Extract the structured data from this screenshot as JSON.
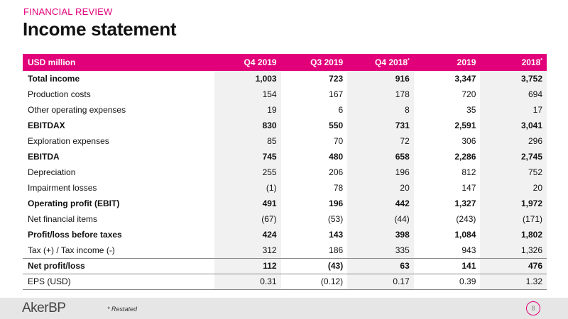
{
  "header": {
    "section": "FINANCIAL REVIEW",
    "title": "Income statement"
  },
  "table": {
    "columns": [
      "USD million",
      "Q4 2019",
      "Q3 2019",
      "Q4 2018",
      "2019",
      "2018"
    ],
    "column_marks": [
      "",
      "",
      "",
      "*",
      "",
      "*"
    ],
    "rows": [
      {
        "label": "Total income",
        "values": [
          "1,003",
          "723",
          "916",
          "3,347",
          "3,752"
        ],
        "bold": true
      },
      {
        "label": "Production costs",
        "values": [
          "154",
          "167",
          "178",
          "720",
          "694"
        ],
        "bold": false
      },
      {
        "label": "Other operating expenses",
        "values": [
          "19",
          "6",
          "8",
          "35",
          "17"
        ],
        "bold": false
      },
      {
        "label": "EBITDAX",
        "values": [
          "830",
          "550",
          "731",
          "2,591",
          "3,041"
        ],
        "bold": true
      },
      {
        "label": "Exploration expenses",
        "values": [
          "85",
          "70",
          "72",
          "306",
          "296"
        ],
        "bold": false
      },
      {
        "label": "EBITDA",
        "values": [
          "745",
          "480",
          "658",
          "2,286",
          "2,745"
        ],
        "bold": true
      },
      {
        "label": "Depreciation",
        "values": [
          "255",
          "206",
          "196",
          "812",
          "752"
        ],
        "bold": false
      },
      {
        "label": "Impairment losses",
        "values": [
          "(1)",
          "78",
          "20",
          "147",
          "20"
        ],
        "bold": false
      },
      {
        "label": "Operating profit (EBIT)",
        "values": [
          "491",
          "196",
          "442",
          "1,327",
          "1,972"
        ],
        "bold": true
      },
      {
        "label": "Net financial items",
        "values": [
          "(67)",
          "(53)",
          "(44)",
          "(243)",
          "(171)"
        ],
        "bold": false
      },
      {
        "label": "Profit/loss before taxes",
        "values": [
          "424",
          "143",
          "398",
          "1,084",
          "1,802"
        ],
        "bold": true
      },
      {
        "label": "Tax (+) / Tax income (-)",
        "values": [
          "312",
          "186",
          "335",
          "943",
          "1,326"
        ],
        "bold": false
      },
      {
        "label": "Net profit/loss",
        "values": [
          "112",
          "(43)",
          "63",
          "141",
          "476"
        ],
        "bold": true
      },
      {
        "label": "EPS (USD)",
        "values": [
          "0.31",
          "(0.12)",
          "0.17",
          "0.39",
          "1.32"
        ],
        "bold": false
      }
    ]
  },
  "footer": {
    "logo": "AkerBP",
    "footnote": "* Restated",
    "page": "8"
  },
  "colors": {
    "accent": "#e2007a",
    "shade": "#f1f1f1",
    "footer": "#e6e6e6"
  }
}
